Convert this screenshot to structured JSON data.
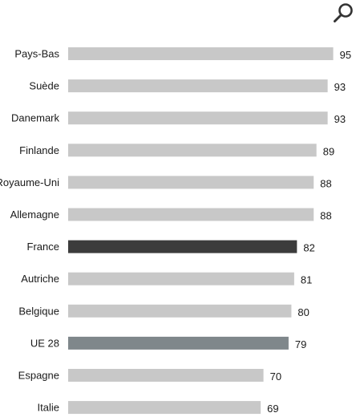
{
  "chart_data": {
    "type": "bar",
    "orientation": "horizontal",
    "title": "",
    "xlabel": "",
    "ylabel": "",
    "xlim": [
      0,
      100
    ],
    "grid": false,
    "legend": "none",
    "categories": [
      "Pays-Bas",
      "Suède",
      "Danemark",
      "Finlande",
      "Royaume-Uni",
      "Allemagne",
      "France",
      "Autriche",
      "Belgique",
      "UE 28",
      "Espagne",
      "Italie"
    ],
    "values": [
      95,
      93,
      93,
      89,
      88,
      88,
      82,
      81,
      80,
      79,
      70,
      69
    ],
    "value_labels": [
      "95",
      "93",
      "93",
      "89",
      "88",
      "88",
      "82",
      "81",
      "80",
      "79",
      "70",
      "69"
    ],
    "highlight": {
      "France": "#3c3c3c",
      "UE 28": "#7f878b"
    }
  },
  "colors": {
    "default_bar": "#c8c8c8",
    "text": "#1a1a1a",
    "icon": "#333333"
  },
  "toolbar": {
    "zoom_icon": "magnifier-icon"
  }
}
